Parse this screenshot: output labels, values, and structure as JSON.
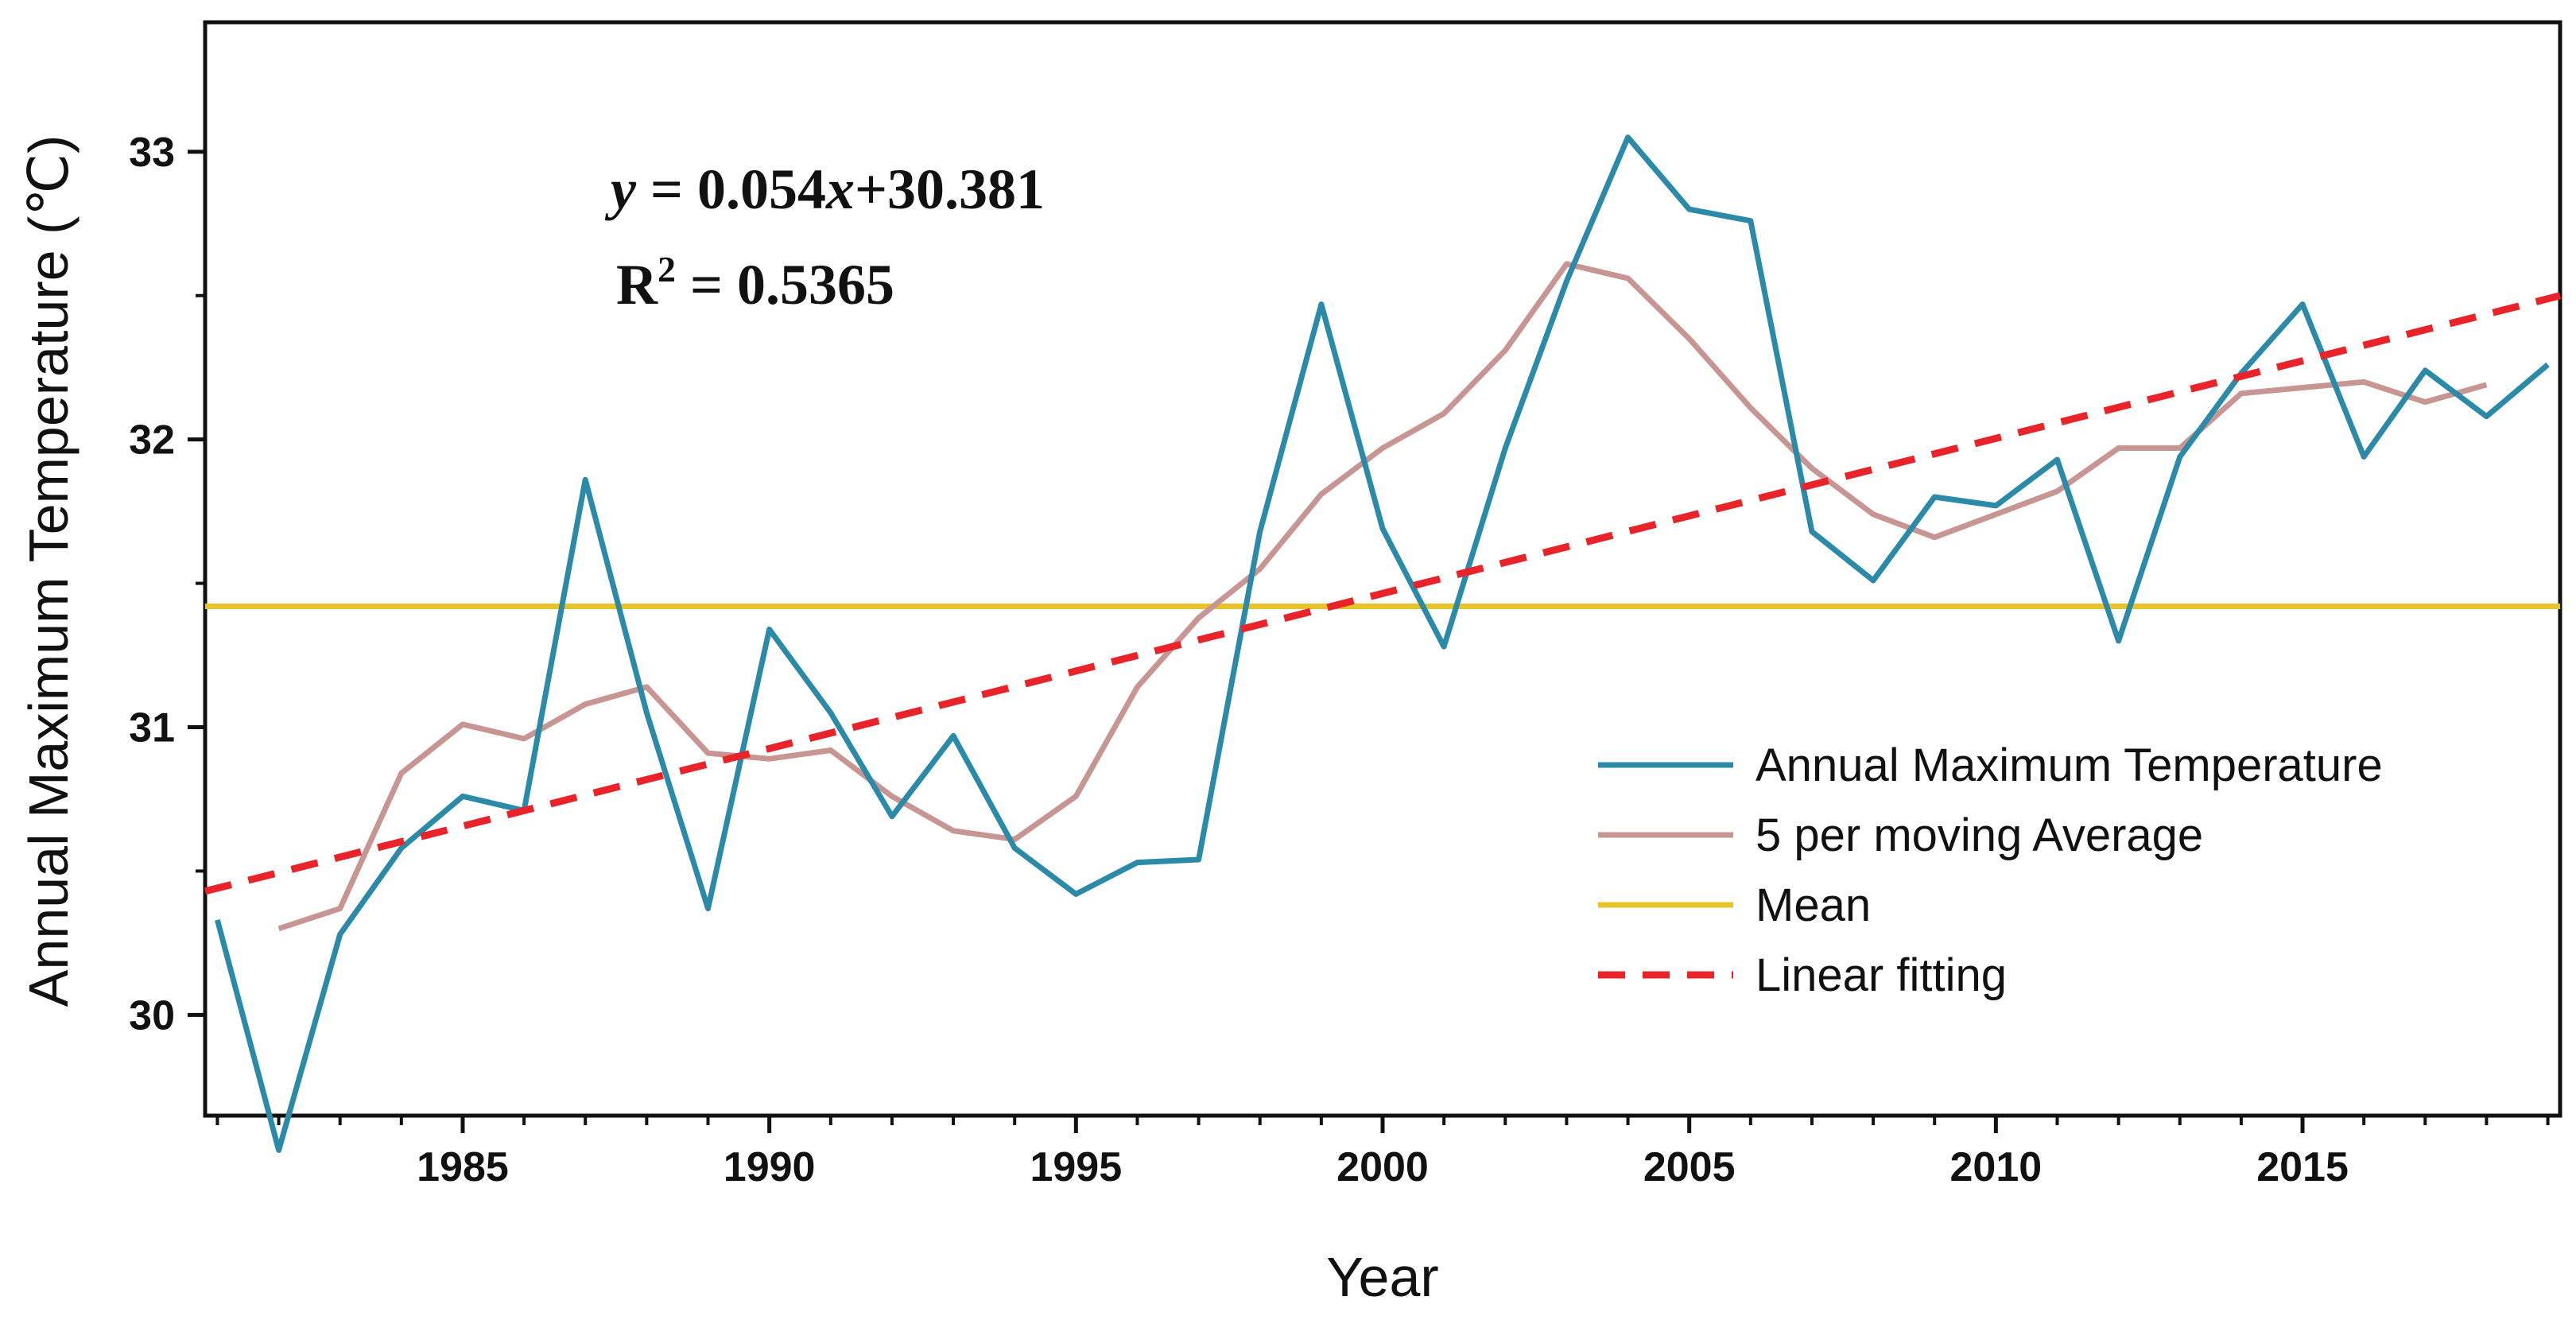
{
  "chart_data": {
    "type": "line",
    "title": "",
    "xlabel": "Year",
    "ylabel": "Annual Maximum Temperature (℃)",
    "xlim": [
      1980.8,
      2019.2
    ],
    "ylim": [
      29.65,
      33.45
    ],
    "x_ticks": [
      1985,
      1990,
      1995,
      2000,
      2005,
      2010,
      2015
    ],
    "y_ticks": [
      30,
      31,
      32,
      33
    ],
    "grid": false,
    "legend_position": "bottom-right",
    "series": [
      {
        "name": "Annual Maximum Temperature",
        "color": "#2a8aa8",
        "style": "solid",
        "x": [
          1981,
          1982,
          1983,
          1984,
          1985,
          1986,
          1987,
          1988,
          1989,
          1990,
          1991,
          1992,
          1993,
          1994,
          1995,
          1996,
          1997,
          1998,
          1999,
          2000,
          2001,
          2002,
          2003,
          2004,
          2005,
          2006,
          2007,
          2008,
          2009,
          2010,
          2011,
          2012,
          2013,
          2014,
          2015,
          2016,
          2017,
          2018,
          2019
        ],
        "values": [
          30.33,
          29.53,
          30.28,
          30.58,
          30.76,
          30.71,
          31.86,
          31.05,
          30.37,
          31.34,
          31.05,
          30.69,
          30.97,
          30.58,
          30.42,
          30.53,
          30.54,
          31.68,
          32.47,
          31.69,
          31.28,
          31.97,
          32.55,
          33.05,
          32.8,
          32.76,
          31.68,
          31.51,
          31.8,
          31.77,
          31.93,
          31.3,
          31.94,
          32.23,
          32.47,
          31.94,
          32.24,
          32.08,
          32.26
        ]
      },
      {
        "name": "5 per moving Average",
        "color": "#c79592",
        "style": "solid",
        "x": [
          1982,
          1983,
          1984,
          1985,
          1986,
          1987,
          1988,
          1989,
          1990,
          1991,
          1992,
          1993,
          1994,
          1995,
          1996,
          1997,
          1998,
          1999,
          2000,
          2001,
          2002,
          2003,
          2004,
          2005,
          2006,
          2007,
          2008,
          2009,
          2010,
          2011,
          2012,
          2013,
          2014,
          2015,
          2016,
          2017,
          2018
        ],
        "values": [
          30.3,
          30.37,
          30.84,
          31.01,
          30.96,
          31.08,
          31.14,
          30.91,
          30.89,
          30.92,
          30.76,
          30.64,
          30.61,
          30.76,
          31.14,
          31.38,
          31.55,
          31.81,
          31.97,
          32.09,
          32.31,
          32.61,
          32.56,
          32.35,
          32.11,
          31.9,
          31.74,
          31.66,
          31.74,
          31.82,
          31.97,
          31.97,
          32.16,
          32.18,
          32.2,
          32.13,
          32.19
        ]
      },
      {
        "name": "Mean",
        "color": "#e8c32a",
        "style": "solid",
        "x": [
          1980.8,
          2019.2
        ],
        "values": [
          31.42,
          31.42
        ]
      },
      {
        "name": "Linear fitting",
        "color": "#e8242a",
        "style": "dashed",
        "x": [
          1980.8,
          2019.2
        ],
        "values": [
          30.43,
          32.5
        ]
      }
    ],
    "annotation": {
      "equation_y": "y",
      "equation_eq": " = 0.054",
      "equation_x": "x",
      "equation_rest": "+30.381",
      "r2_label": "R",
      "r2_sup": "2",
      "r2_value": " = 0.5365"
    }
  }
}
